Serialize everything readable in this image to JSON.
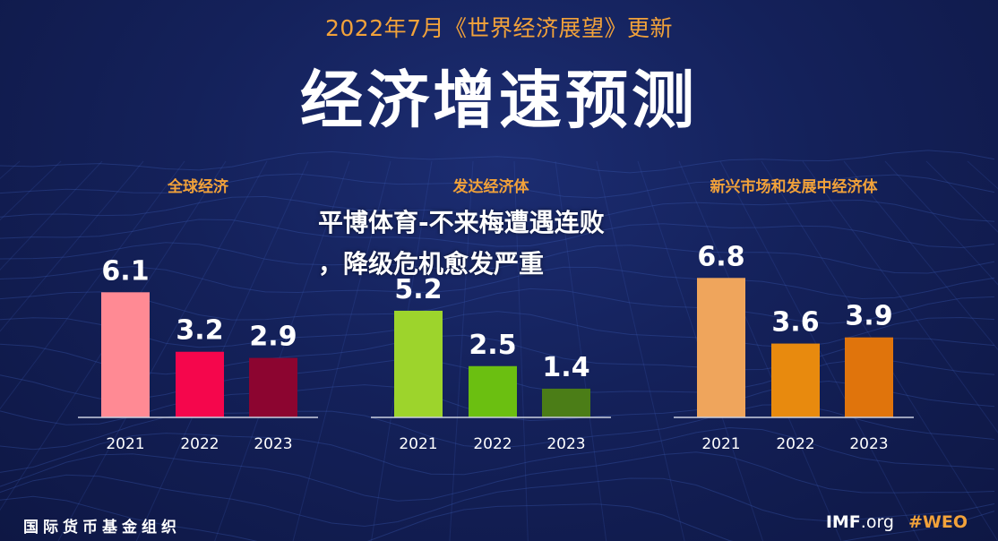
{
  "header": {
    "subtitle": "2022年7月《世界经济展望》更新",
    "title": "经济增速预测"
  },
  "overlay_text": {
    "line1": "平博体育-不来梅遭遇连败",
    "line2": "，降级危机愈发严重"
  },
  "footer": {
    "org": "国际货币基金组织",
    "site_bold": "IMF",
    "site_rest": ".org",
    "hashtag": "#WEO"
  },
  "colors": {
    "background": "#14215a",
    "accent": "#f2a23a",
    "grid": "#3d5bb5"
  },
  "chart_data": [
    {
      "type": "bar",
      "title": "全球经济",
      "categories": [
        "2021",
        "2022",
        "2023"
      ],
      "values": [
        6.1,
        3.2,
        2.9
      ],
      "value_labels": [
        "6.1",
        "3.2",
        "2.9"
      ],
      "colors": [
        "#ff8a94",
        "#f5064c",
        "#8c0530"
      ],
      "ylim": [
        0,
        7
      ]
    },
    {
      "type": "bar",
      "title": "发达经济体",
      "categories": [
        "2021",
        "2022",
        "2023"
      ],
      "values": [
        5.2,
        2.5,
        1.4
      ],
      "value_labels": [
        "5.2",
        "2.5",
        "1.4"
      ],
      "colors": [
        "#9dd42c",
        "#6bbf11",
        "#4b7d17"
      ],
      "ylim": [
        0,
        7
      ]
    },
    {
      "type": "bar",
      "title": "新兴市场和发展中经济体",
      "categories": [
        "2021",
        "2022",
        "2023"
      ],
      "values": [
        6.8,
        3.6,
        3.9
      ],
      "value_labels": [
        "6.8",
        "3.6",
        "3.9"
      ],
      "colors": [
        "#efa55c",
        "#e88a0e",
        "#e0740c"
      ],
      "ylim": [
        0,
        7
      ]
    }
  ]
}
